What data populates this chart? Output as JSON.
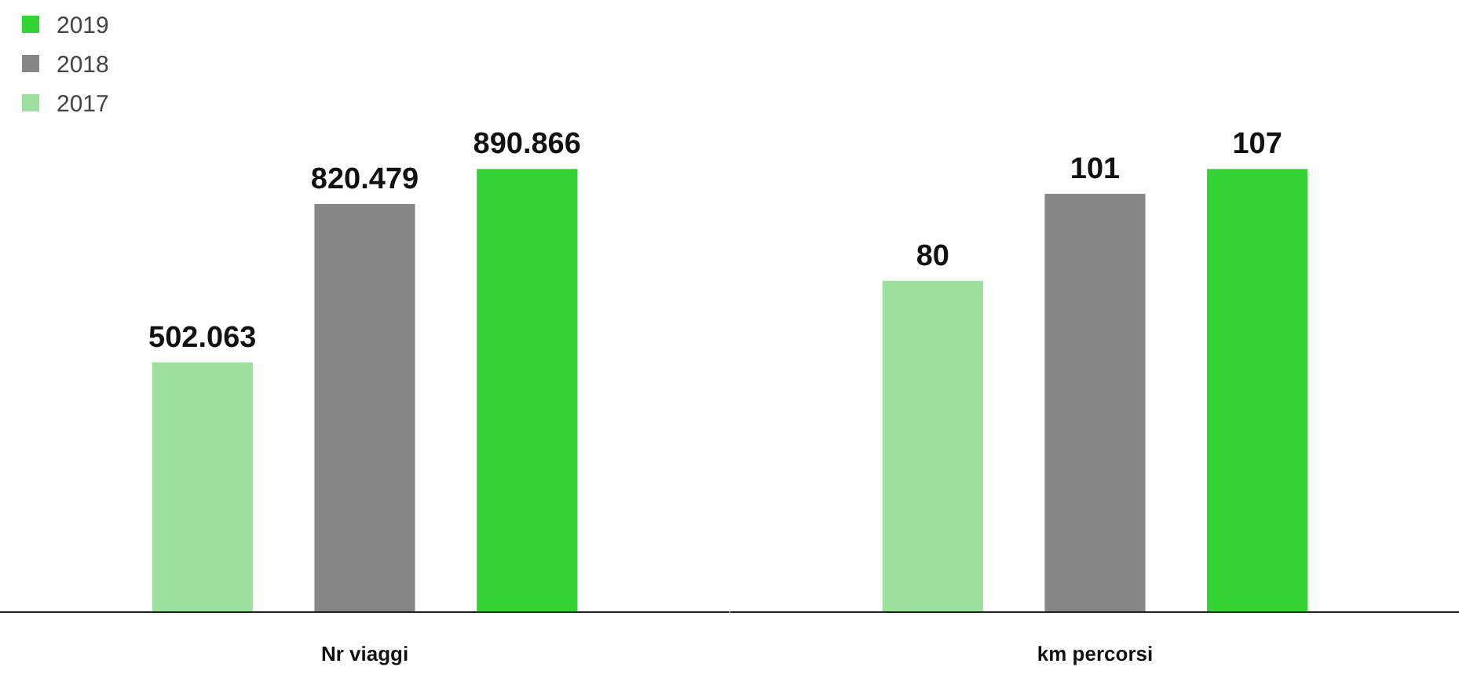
{
  "chart_data": [
    {
      "type": "bar",
      "xlabel": "Nr viaggi",
      "categories": [
        null,
        null,
        null
      ],
      "values": [
        502063,
        820479,
        890866
      ],
      "value_labels": [
        "502.063",
        "820.479",
        "890.866"
      ],
      "colors": [
        "#9de09d",
        "#878787",
        "#35d435"
      ],
      "annotations": [
        "2019",
        "2018",
        "2017"
      ]
    },
    {
      "type": "bar",
      "xlabel": "km percorsi",
      "categories": [
        null,
        null,
        null
      ],
      "values": [
        80,
        101,
        107
      ],
      "value_labels": [
        "80",
        "101",
        "107"
      ],
      "colors": [
        "#9de09d",
        "#878787",
        "#35d435"
      ]
    }
  ]
}
